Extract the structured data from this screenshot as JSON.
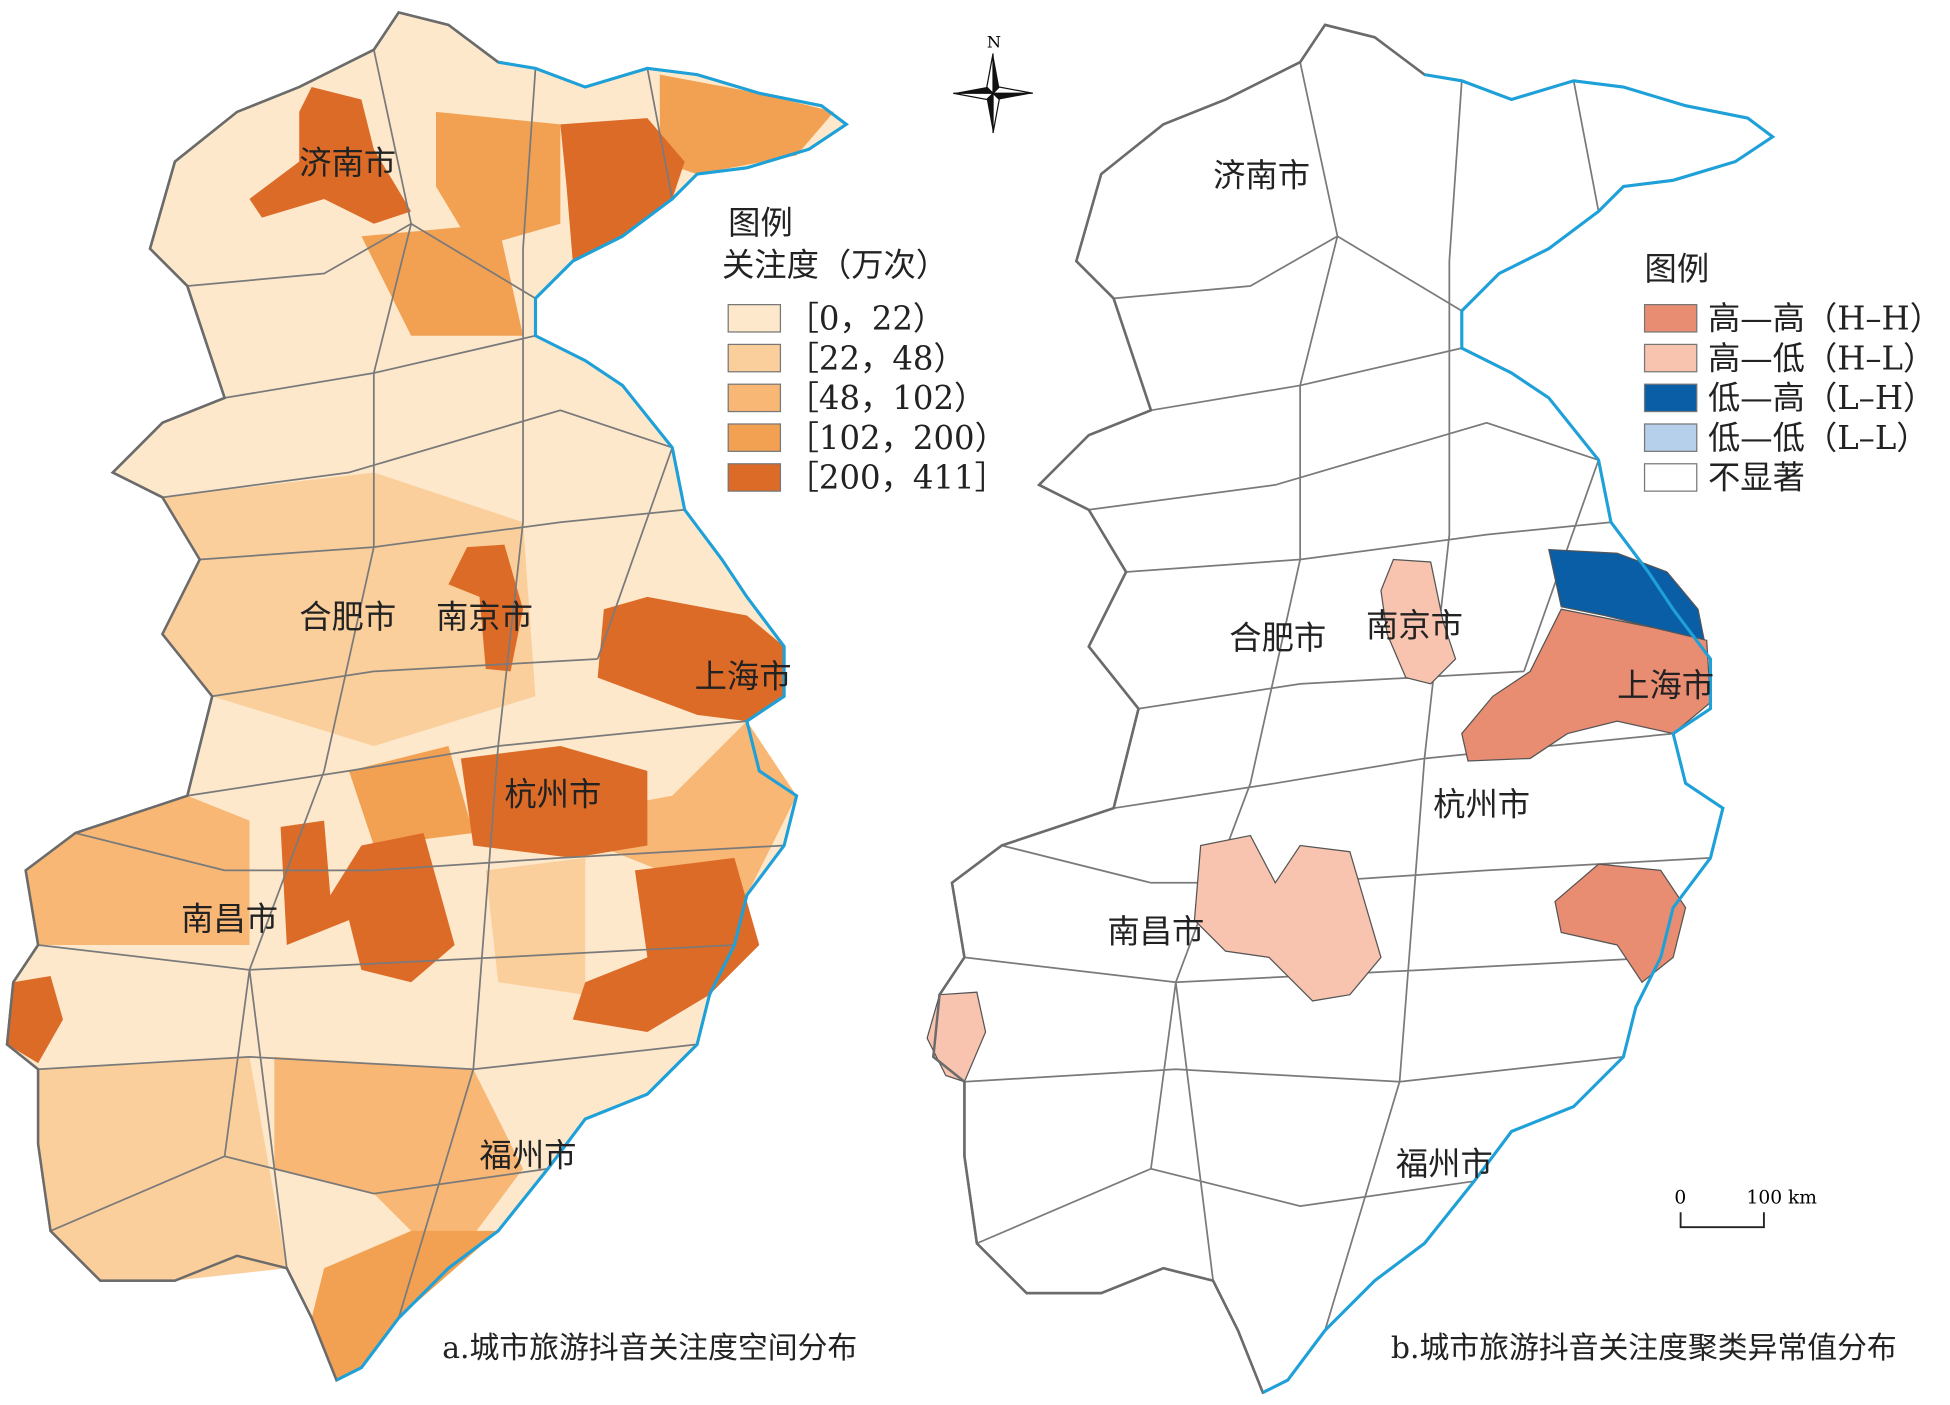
{
  "map_a": {
    "caption": "a.城市旅游抖音关注度空间分布",
    "legend_title": "图例",
    "legend_subtitle": "关注度（万次）",
    "legend": [
      {
        "label": "［0，22）",
        "color": "#fde8cc"
      },
      {
        "label": "［22，48）",
        "color": "#fbcf9c"
      },
      {
        "label": "［48，102）",
        "color": "#f8b774"
      },
      {
        "label": "［102，200）",
        "color": "#f2a152"
      },
      {
        "label": "［200，411］",
        "color": "#dd6b28"
      }
    ],
    "city_labels": [
      "济南市",
      "合肥市",
      "南京市",
      "上海市",
      "杭州市",
      "南昌市",
      "福州市"
    ]
  },
  "map_b": {
    "caption": "b.城市旅游抖音关注度聚类异常值分布",
    "legend_title": "图例",
    "legend": [
      {
        "label": "高—高（H–H）",
        "color": "#e98d72"
      },
      {
        "label": "高—低（H–L）",
        "color": "#f8c4b0"
      },
      {
        "label": "低—高（L–H）",
        "color": "#0a5ea6"
      },
      {
        "label": "低—低（L–L）",
        "color": "#b6d0ec"
      },
      {
        "label": "不显著",
        "color": "#ffffff"
      }
    ],
    "city_labels": [
      "济南市",
      "合肥市",
      "南京市",
      "上海市",
      "杭州市",
      "南昌市",
      "福州市"
    ]
  },
  "compass": {
    "label": "N",
    "icon": "north-arrow-icon"
  },
  "scale_bar": {
    "start": "0",
    "end": "100 km"
  },
  "colors": {
    "coastline": "#1ea0d8",
    "boundary": "#6b6b6b"
  }
}
